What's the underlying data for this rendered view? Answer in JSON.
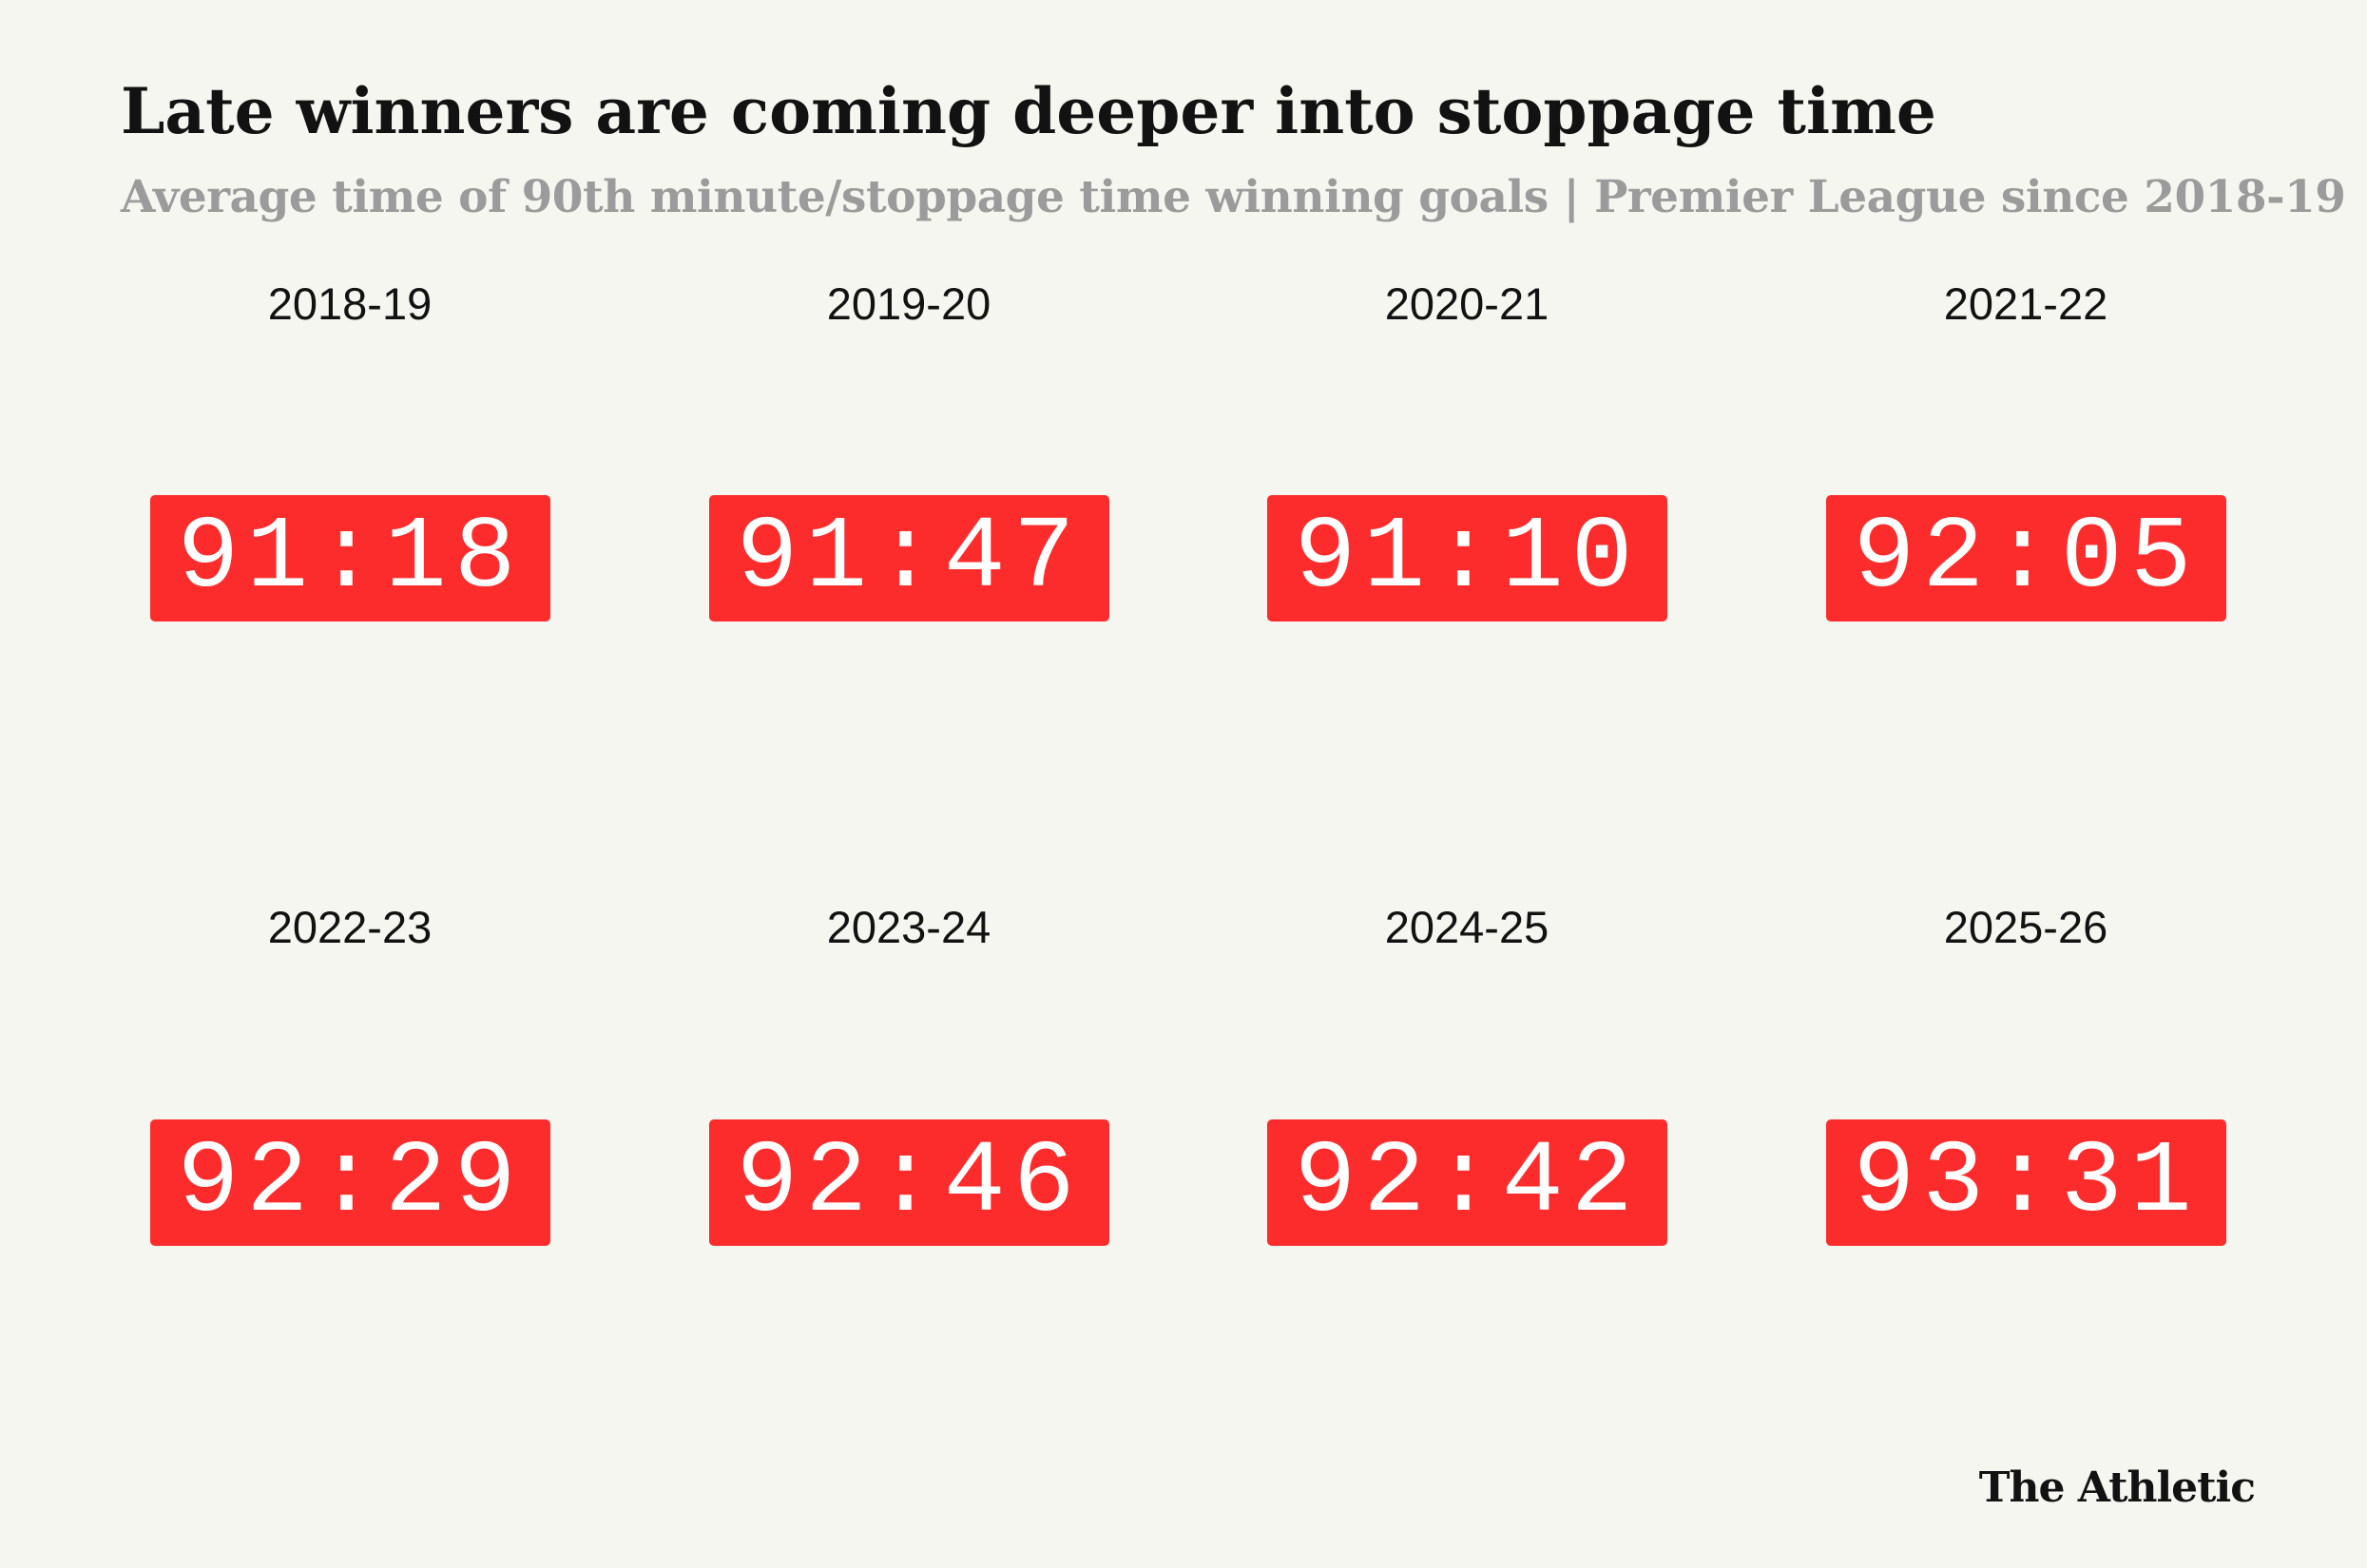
{
  "header": {
    "title": "Late winners are coming deeper into stoppage time",
    "subtitle": "Average time of 90th minute/stoppage time winning goals | Premier League since 2018-19"
  },
  "clocks": [
    {
      "season": "2018-19",
      "time": "91:18"
    },
    {
      "season": "2019-20",
      "time": "91:47"
    },
    {
      "season": "2020-21",
      "time": "91:10"
    },
    {
      "season": "2021-22",
      "time": "92:05"
    },
    {
      "season": "2022-23",
      "time": "92:29"
    },
    {
      "season": "2023-24",
      "time": "92:46"
    },
    {
      "season": "2024-25",
      "time": "92:42"
    },
    {
      "season": "2025-26",
      "time": "93:31"
    }
  ],
  "footer": {
    "brand": "The Athletic"
  }
}
